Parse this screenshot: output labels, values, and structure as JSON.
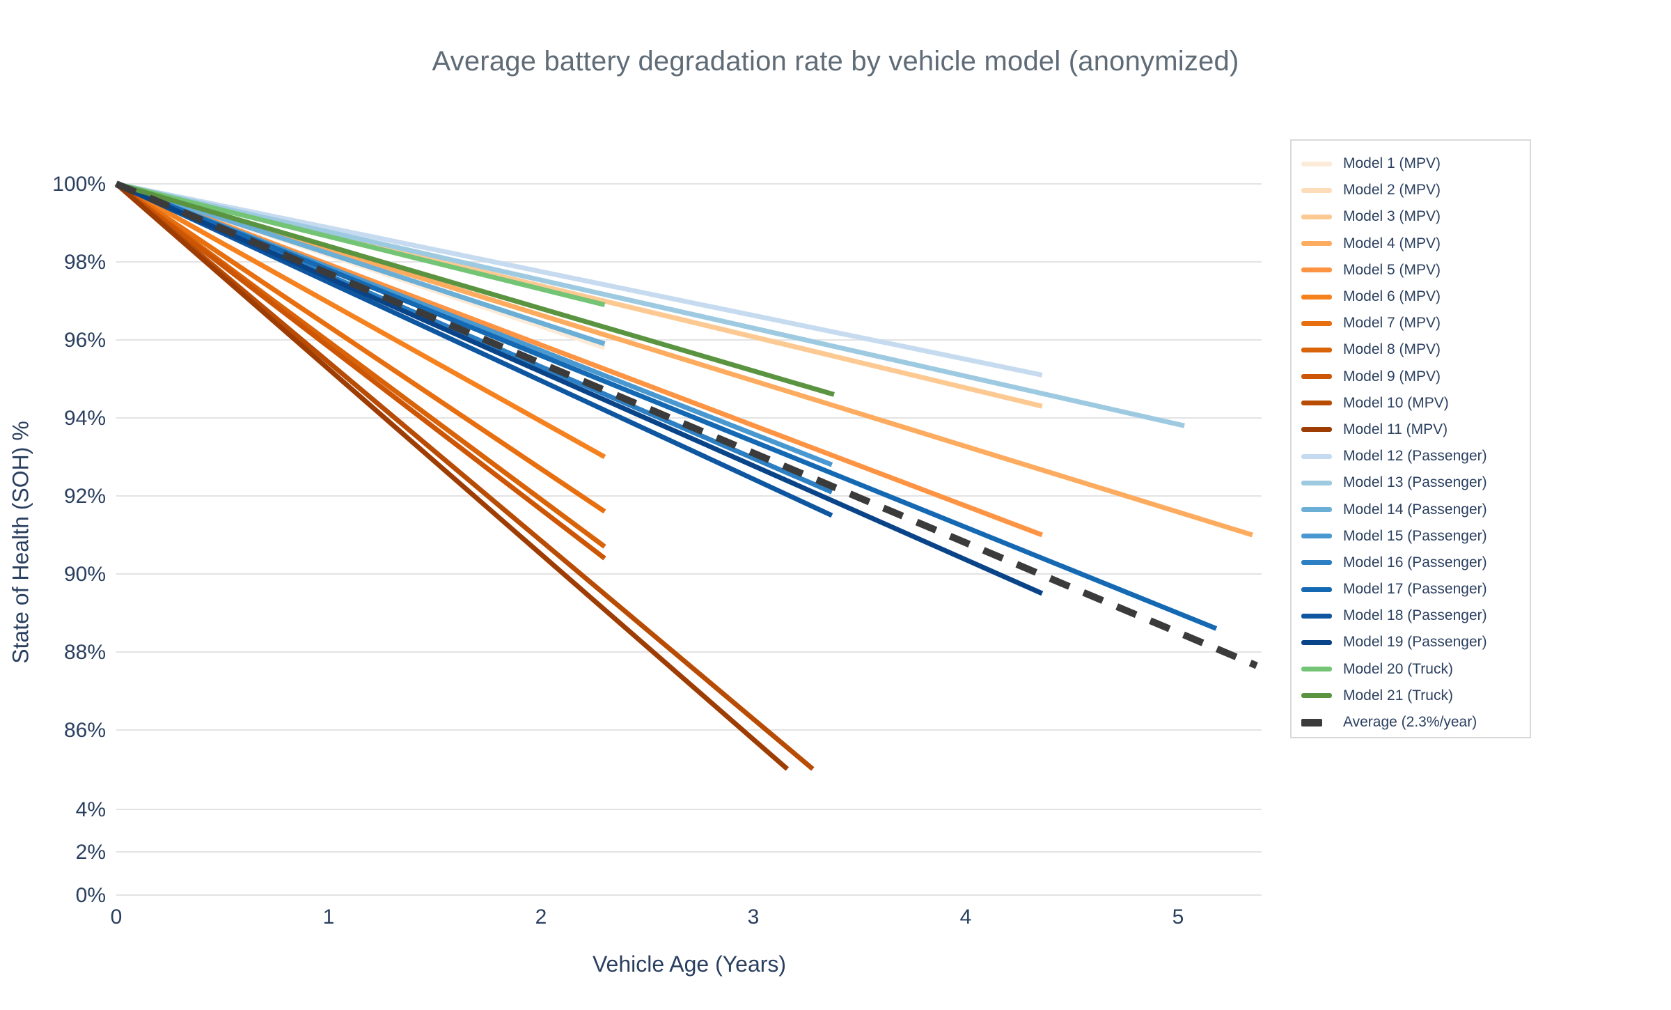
{
  "title": "Average battery degradation rate by vehicle model (anonymized)",
  "x_axis": {
    "title": "Vehicle Age (Years)",
    "ticks": [
      {
        "label": "0",
        "value": 0
      },
      {
        "label": "1",
        "value": 1
      },
      {
        "label": "2",
        "value": 2
      },
      {
        "label": "3",
        "value": 3
      },
      {
        "label": "4",
        "value": 4
      },
      {
        "label": "5",
        "value": 5
      }
    ]
  },
  "y_axis": {
    "title": "State of Health (SOH) %",
    "ticks": [
      {
        "label": "100%",
        "value": 100
      },
      {
        "label": "98%",
        "value": 98
      },
      {
        "label": "96%",
        "value": 96
      },
      {
        "label": "94%",
        "value": 94
      },
      {
        "label": "92%",
        "value": 92
      },
      {
        "label": "90%",
        "value": 90
      },
      {
        "label": "88%",
        "value": 88
      },
      {
        "label": "86%",
        "value": 86
      },
      {
        "label": "4%",
        "value": 4
      },
      {
        "label": "2%",
        "value": 2
      },
      {
        "label": "0%",
        "value": 0
      }
    ],
    "has_axis_break": true,
    "break_between": [
      86,
      4
    ]
  },
  "colors": {
    "grid": "#e3e3e3",
    "tick_text": "#2a3f5f",
    "title_text": "#5f6b76",
    "legend_border": "#d9d9d9",
    "background": "#ffffff"
  },
  "chart_data": {
    "type": "line",
    "title": "Average battery degradation rate by vehicle model (anonymized)",
    "xlabel": "Vehicle Age (Years)",
    "ylabel": "State of Health (SOH) %",
    "xlim": [
      0,
      5.39
    ],
    "ylim_upper_section": [
      86,
      100
    ],
    "ylim_lower_section": [
      0,
      4
    ],
    "grid": "horizontal-only",
    "legend_position": "right",
    "series": [
      {
        "name": "Model 1 (MPV)",
        "group": "MPV",
        "color": "#fcebd9",
        "dashed": false,
        "x": [
          0,
          2.3
        ],
        "y": [
          100,
          95.8
        ]
      },
      {
        "name": "Model 2 (MPV)",
        "group": "MPV",
        "color": "#fdddb9",
        "dashed": false,
        "x": [
          0,
          3.37
        ],
        "y": [
          100,
          95.6
        ]
      },
      {
        "name": "Model 3 (MPV)",
        "group": "MPV",
        "color": "#fdc992",
        "dashed": false,
        "x": [
          0,
          4.36
        ],
        "y": [
          100,
          94.3
        ]
      },
      {
        "name": "Model 4 (MPV)",
        "group": "MPV",
        "color": "#fdab5f",
        "dashed": false,
        "x": [
          0,
          5.35
        ],
        "y": [
          100,
          91.0
        ]
      },
      {
        "name": "Model 5 (MPV)",
        "group": "MPV",
        "color": "#fd9443",
        "dashed": false,
        "x": [
          0,
          4.36
        ],
        "y": [
          100,
          91.0
        ]
      },
      {
        "name": "Model 6 (MPV)",
        "group": "MPV",
        "color": "#f5821f",
        "dashed": false,
        "x": [
          0,
          2.3
        ],
        "y": [
          100,
          93.0
        ]
      },
      {
        "name": "Model 7 (MPV)",
        "group": "MPV",
        "color": "#e86f10",
        "dashed": false,
        "x": [
          0,
          2.3
        ],
        "y": [
          100,
          91.6
        ]
      },
      {
        "name": "Model 8 (MPV)",
        "group": "MPV",
        "color": "#d96309",
        "dashed": false,
        "x": [
          0,
          2.3
        ],
        "y": [
          100,
          90.7
        ]
      },
      {
        "name": "Model 9 (MPV)",
        "group": "MPV",
        "color": "#cc5606",
        "dashed": false,
        "x": [
          0,
          2.3
        ],
        "y": [
          100,
          90.4
        ]
      },
      {
        "name": "Model 10 (MPV)",
        "group": "MPV",
        "color": "#b84c04",
        "dashed": false,
        "x": [
          0,
          3.28
        ],
        "y": [
          100,
          85.0
        ]
      },
      {
        "name": "Model 11 (MPV)",
        "group": "MPV",
        "color": "#9e3d03",
        "dashed": false,
        "x": [
          0,
          3.16
        ],
        "y": [
          100,
          85.0
        ]
      },
      {
        "name": "Model 12 (Passenger)",
        "group": "Passenger",
        "color": "#c6dbef",
        "dashed": false,
        "x": [
          0,
          4.36
        ],
        "y": [
          100,
          95.1
        ]
      },
      {
        "name": "Model 13 (Passenger)",
        "group": "Passenger",
        "color": "#9ecae1",
        "dashed": false,
        "x": [
          0,
          5.03
        ],
        "y": [
          100,
          93.8
        ]
      },
      {
        "name": "Model 14 (Passenger)",
        "group": "Passenger",
        "color": "#6baed6",
        "dashed": false,
        "x": [
          0,
          2.3
        ],
        "y": [
          100,
          95.9
        ]
      },
      {
        "name": "Model 15 (Passenger)",
        "group": "Passenger",
        "color": "#4a98d0",
        "dashed": false,
        "x": [
          0,
          3.37
        ],
        "y": [
          100,
          92.8
        ]
      },
      {
        "name": "Model 16 (Passenger)",
        "group": "Passenger",
        "color": "#2b7fc2",
        "dashed": false,
        "x": [
          0,
          3.37
        ],
        "y": [
          100,
          92.1
        ]
      },
      {
        "name": "Model 17 (Passenger)",
        "group": "Passenger",
        "color": "#1569b3",
        "dashed": false,
        "x": [
          0,
          5.18
        ],
        "y": [
          100,
          88.6
        ]
      },
      {
        "name": "Model 18 (Passenger)",
        "group": "Passenger",
        "color": "#0e56a0",
        "dashed": false,
        "x": [
          0,
          3.37
        ],
        "y": [
          100,
          91.5
        ]
      },
      {
        "name": "Model 19 (Passenger)",
        "group": "Passenger",
        "color": "#0a4488",
        "dashed": false,
        "x": [
          0,
          4.36
        ],
        "y": [
          100,
          89.5
        ]
      },
      {
        "name": "Model 20 (Truck)",
        "group": "Truck",
        "color": "#74c476",
        "dashed": false,
        "x": [
          0,
          2.3
        ],
        "y": [
          100,
          96.9
        ]
      },
      {
        "name": "Model 21 (Truck)",
        "group": "Truck",
        "color": "#5a9440",
        "dashed": false,
        "x": [
          0,
          3.38
        ],
        "y": [
          100,
          94.6
        ]
      },
      {
        "name": "Average (2.3%/year)",
        "group": "Average",
        "color": "#3b3b3b",
        "dashed": true,
        "x": [
          0,
          5.37
        ],
        "y": [
          100,
          87.65
        ]
      }
    ]
  }
}
